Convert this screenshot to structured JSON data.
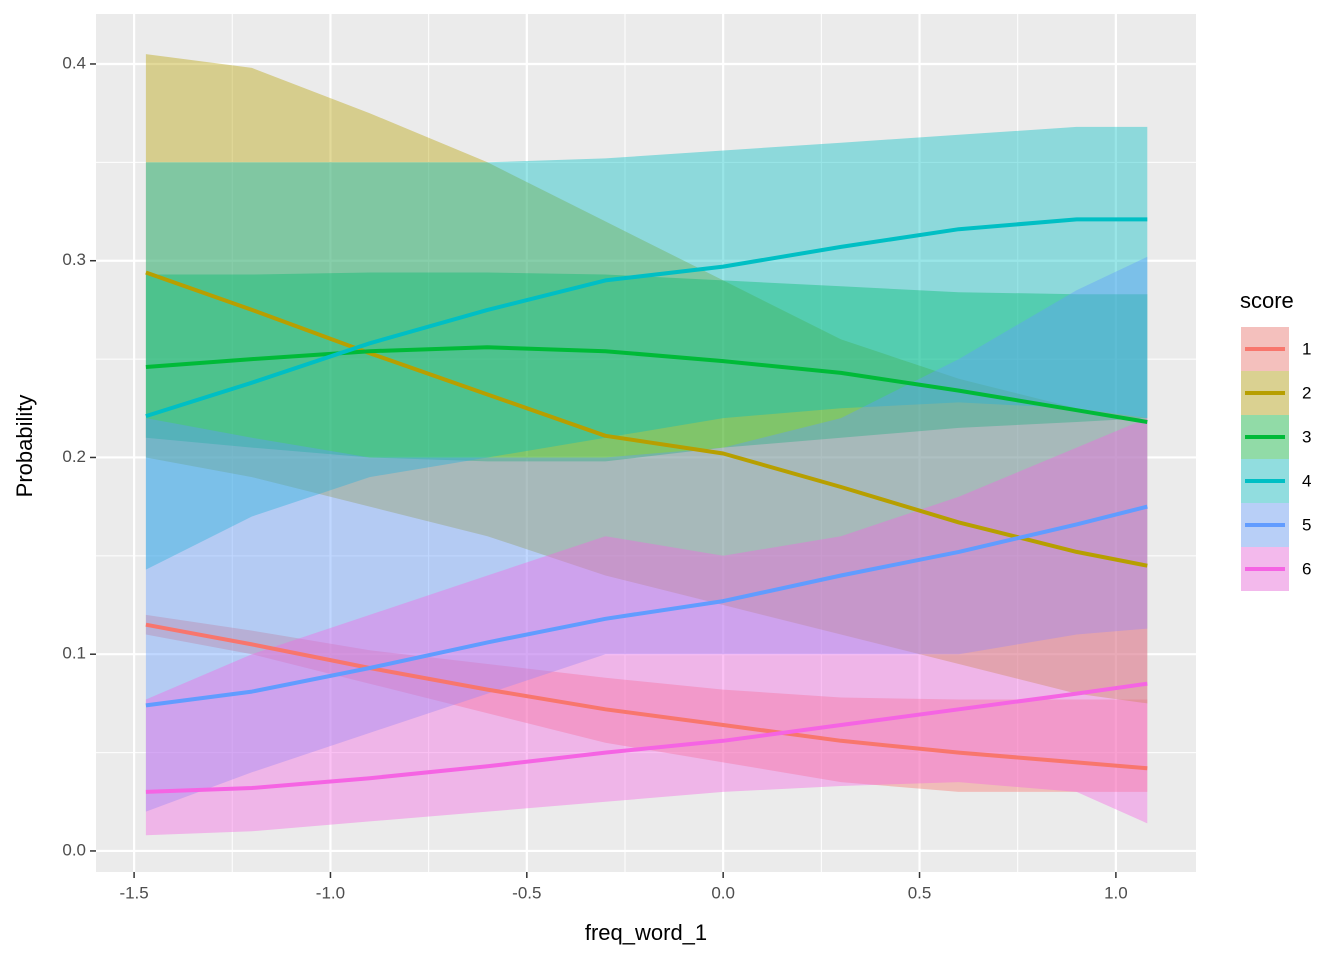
{
  "chart_data": {
    "type": "line",
    "x_label": "freq_word_1",
    "y_label": "Probability",
    "legend_title": "score",
    "legend_position": "right",
    "grid": true,
    "ribbon_alpha": 0.4,
    "x": [
      -1.47,
      -1.2,
      -0.9,
      -0.6,
      -0.3,
      0,
      0.3,
      0.6,
      0.9,
      1.08
    ],
    "xlim": [
      -1.597,
      1.204
    ],
    "ylim": [
      -0.0107,
      0.4254
    ],
    "xticks": [
      -1.5,
      {
        "value": -1,
        "label": "-1.0"
      },
      -0.5,
      {
        "value": 0,
        "label": "0.0"
      },
      0.5,
      {
        "value": 1,
        "label": "1.0"
      }
    ],
    "yticks": [
      {
        "value": 0,
        "label": "0.0"
      },
      0.1,
      0.2,
      0.3,
      0.4
    ],
    "series": [
      {
        "name": "1",
        "color": "#F8766D",
        "values": [
          0.115,
          0.105,
          0.093,
          0.082,
          0.072,
          0.064,
          0.056,
          0.05,
          0.045,
          0.042
        ],
        "lower": [
          0.11,
          0.1,
          0.085,
          0.07,
          0.055,
          0.045,
          0.035,
          0.03,
          0.03,
          0.03
        ],
        "upper": [
          0.12,
          0.112,
          0.102,
          0.095,
          0.088,
          0.082,
          0.078,
          0.077,
          0.077,
          0.077
        ]
      },
      {
        "name": "2",
        "color": "#B79F00",
        "values": [
          0.294,
          0.275,
          0.253,
          0.232,
          0.211,
          0.202,
          0.185,
          0.167,
          0.152,
          0.145
        ],
        "lower": [
          0.2,
          0.19,
          0.175,
          0.16,
          0.14,
          0.125,
          0.11,
          0.095,
          0.08,
          0.075
        ],
        "upper": [
          0.405,
          0.398,
          0.375,
          0.35,
          0.32,
          0.29,
          0.26,
          0.24,
          0.225,
          0.22
        ]
      },
      {
        "name": "3",
        "color": "#00BA38",
        "values": [
          0.246,
          0.25,
          0.254,
          0.256,
          0.254,
          0.249,
          0.243,
          0.234,
          0.224,
          0.218
        ],
        "lower": [
          0.21,
          0.205,
          0.2,
          0.198,
          0.198,
          0.205,
          0.21,
          0.215,
          0.218,
          0.22
        ],
        "upper": [
          0.293,
          0.293,
          0.294,
          0.294,
          0.293,
          0.29,
          0.287,
          0.284,
          0.283,
          0.283
        ]
      },
      {
        "name": "4",
        "color": "#00BFC4",
        "values": [
          0.221,
          0.238,
          0.258,
          0.275,
          0.29,
          0.297,
          0.307,
          0.316,
          0.321,
          0.321
        ],
        "lower": [
          0.143,
          0.17,
          0.19,
          0.2,
          0.21,
          0.22,
          0.225,
          0.228,
          0.225,
          0.22
        ],
        "upper": [
          0.35,
          0.35,
          0.35,
          0.35,
          0.352,
          0.356,
          0.36,
          0.364,
          0.368,
          0.368
        ]
      },
      {
        "name": "5",
        "color": "#619CFF",
        "values": [
          0.074,
          0.081,
          0.093,
          0.106,
          0.118,
          0.127,
          0.14,
          0.152,
          0.166,
          0.175
        ],
        "lower": [
          0.02,
          0.04,
          0.06,
          0.08,
          0.1,
          0.1,
          0.1,
          0.1,
          0.11,
          0.113
        ],
        "upper": [
          0.22,
          0.21,
          0.2,
          0.2,
          0.2,
          0.205,
          0.22,
          0.25,
          0.285,
          0.302
        ]
      },
      {
        "name": "6",
        "color": "#F564E3",
        "values": [
          0.03,
          0.032,
          0.037,
          0.043,
          0.05,
          0.056,
          0.064,
          0.072,
          0.08,
          0.085
        ],
        "lower": [
          0.008,
          0.01,
          0.015,
          0.02,
          0.025,
          0.03,
          0.033,
          0.035,
          0.03,
          0.014
        ],
        "upper": [
          0.077,
          0.1,
          0.12,
          0.14,
          0.16,
          0.15,
          0.16,
          0.18,
          0.205,
          0.22
        ]
      }
    ]
  }
}
